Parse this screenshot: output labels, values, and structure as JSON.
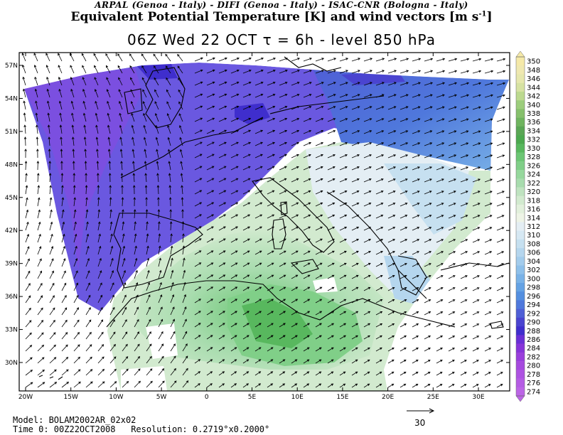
{
  "header": {
    "line1": "ARPAL (Genoa - Italy)  -  DIFI (Genoa - Italy)  -  ISAC-CNR (Bologna - Italy)",
    "line2_main": "Equivalent Potential Temperature [K] and wind vectors [m s",
    "line2_sup": "-1",
    "line2_end": "]",
    "line3": "06Z Wed 22 OCT  τ = 6h  -  level 850 hPa"
  },
  "map": {
    "lat_labels": [
      "57N",
      "54N",
      "51N",
      "48N",
      "45N",
      "42N",
      "39N",
      "36N",
      "33N",
      "30N"
    ],
    "lon_labels": [
      "20W",
      "15W",
      "10W",
      "5W",
      "0",
      "5E",
      "10E",
      "15E",
      "20E",
      "25E",
      "30E"
    ],
    "vector_scale_label": "30"
  },
  "colorbar": {
    "labels": [
      "350",
      "348",
      "346",
      "344",
      "342",
      "340",
      "338",
      "336",
      "334",
      "332",
      "330",
      "328",
      "326",
      "324",
      "322",
      "320",
      "318",
      "316",
      "314",
      "312",
      "310",
      "308",
      "306",
      "304",
      "302",
      "300",
      "298",
      "296",
      "294",
      "292",
      "290",
      "288",
      "286",
      "284",
      "282",
      "280",
      "278",
      "276",
      "274"
    ],
    "colors": [
      "#f5e9a8",
      "#efe8b0",
      "#e6e7ad",
      "#d6e2a2",
      "#bcd98f",
      "#9ccd7c",
      "#86c06c",
      "#6fb45f",
      "#5aa655",
      "#4ca94f",
      "#58b85e",
      "#6cc674",
      "#80cf88",
      "#96d89d",
      "#a8dcae",
      "#bfe3c0",
      "#d2eacf",
      "#e2f0dc",
      "#eef4e6",
      "#e4eef4",
      "#d6e8f3",
      "#c6e0f0",
      "#b5d6ee",
      "#a3ccec",
      "#8ec0ea",
      "#79b2e7",
      "#64a2e4",
      "#548fe0",
      "#4f78dc",
      "#4f5fd6",
      "#4a44d0",
      "#3f2ecd",
      "#6a2fd6",
      "#8734d9",
      "#9a3fdc",
      "#a64adf",
      "#ae53e2",
      "#b55ce4",
      "#bc65e6"
    ]
  },
  "footer": {
    "model": "Model: BOLAM2002AR_02x02",
    "time": "Time 0: 00Z22OCT2008",
    "resolution": "Resolution: 0.2719°x0.2000°"
  }
}
